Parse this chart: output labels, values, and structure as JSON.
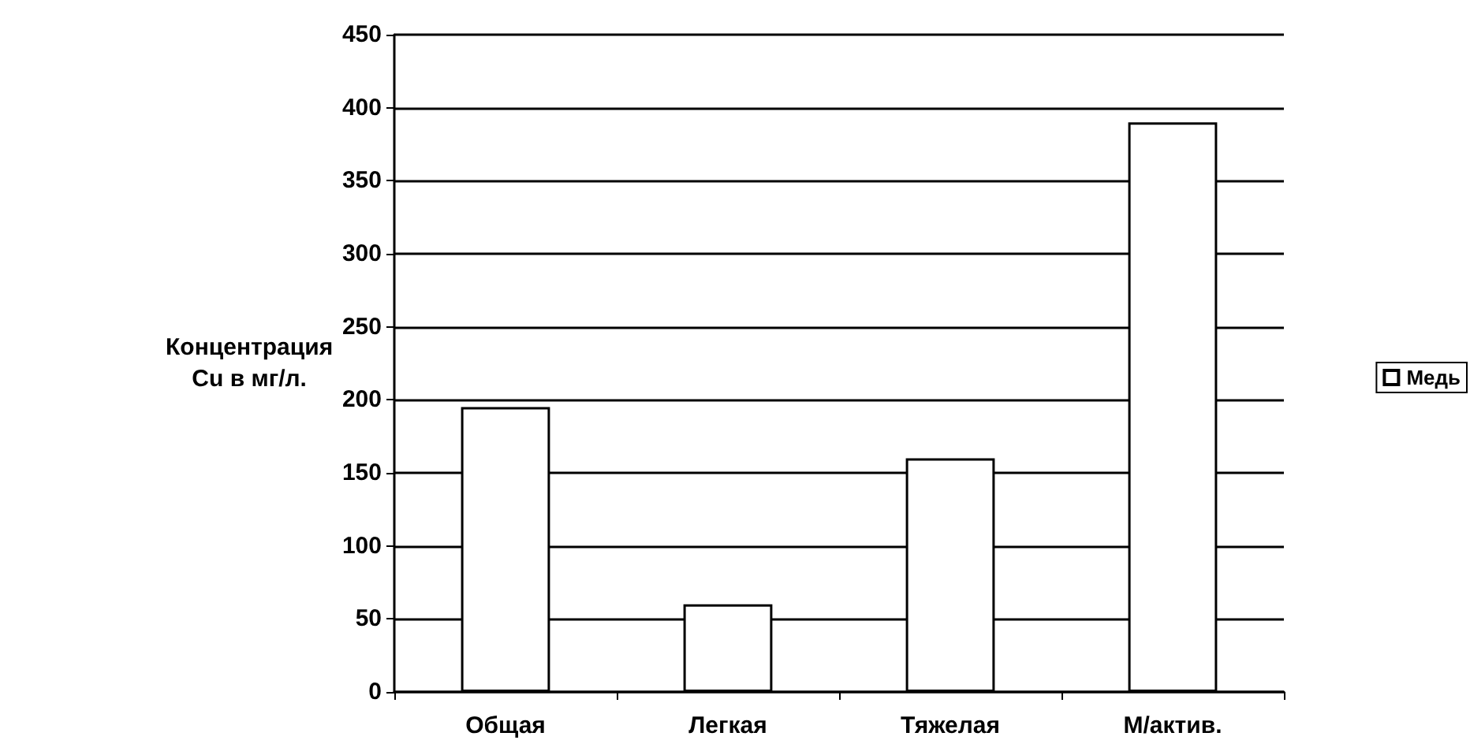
{
  "chart_data": {
    "type": "bar",
    "ylabel": "Концентрация\nCu в мг/л.",
    "categories": [
      "Общая",
      "Легкая",
      "Тяжелая",
      "М/актив."
    ],
    "series": [
      {
        "name": "Медь",
        "color": "#ffffff",
        "values": [
          195,
          60,
          160,
          390
        ]
      }
    ],
    "ylim": [
      0,
      450
    ],
    "yticks": [
      0,
      50,
      100,
      150,
      200,
      250,
      300,
      350,
      400,
      450
    ],
    "grid": true,
    "legend": "right"
  }
}
